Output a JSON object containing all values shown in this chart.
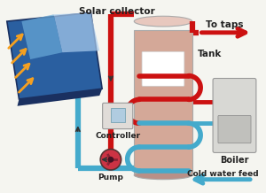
{
  "bg_color": "#f5f5f0",
  "labels": {
    "solar_collector": "Solar collector",
    "to_taps": "To taps",
    "tank": "Tank",
    "controller": "Controller",
    "pump": "Pump",
    "boiler": "Boiler",
    "cold_water_feed": "Cold water feed"
  },
  "colors": {
    "red": "#cc1111",
    "blue": "#44aacc",
    "blue_dark": "#2288bb",
    "collector_dark": "#1a3060",
    "collector_mid": "#2a5fa0",
    "collector_light": "#6aaad8",
    "collector_highlight": "#aaccee",
    "tank_body": "#d4a898",
    "tank_light": "#e8c8be",
    "tank_dark": "#b89088",
    "boiler_body": "#d8d8d4",
    "boiler_dark": "#b8b8b4",
    "boiler_panel": "#c0c0bc",
    "orange_arrow": "#f5a020",
    "pump_body": "#cc3344",
    "pump_dark": "#882233",
    "controller_body": "#e0dcd8",
    "controller_screen": "#b0cce0",
    "controller_dark": "#b0a8a0"
  },
  "pipe_lw": 4.5,
  "coil_lw": 4.0
}
